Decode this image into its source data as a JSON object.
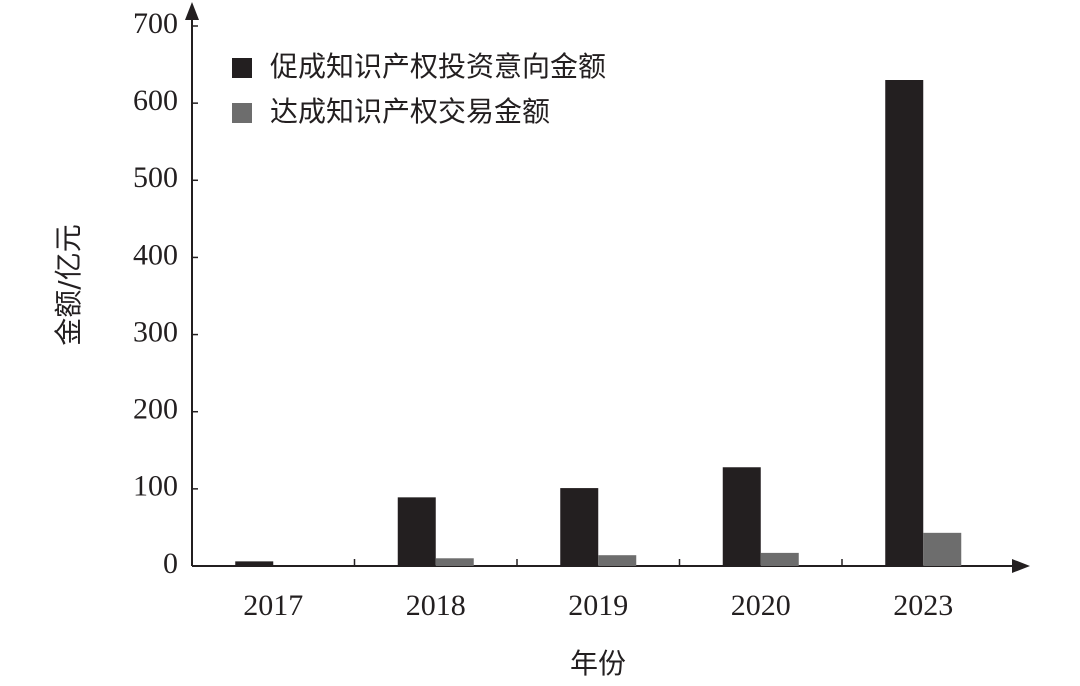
{
  "chart_data": {
    "type": "bar",
    "x_label": "年份",
    "y_label": "金额/亿元",
    "categories": [
      "2017",
      "2018",
      "2019",
      "2020",
      "2023"
    ],
    "series": [
      {
        "name": "促成知识产权投资意向金额",
        "color": "#231f20",
        "values": [
          6,
          89,
          101,
          128,
          630
        ]
      },
      {
        "name": "达成知识产权交易金额",
        "color": "#6d6d6d",
        "values": [
          0,
          10,
          14,
          17,
          43
        ]
      }
    ],
    "ylim": [
      0,
      700
    ],
    "yticks": [
      0,
      100,
      200,
      300,
      400,
      500,
      600,
      700
    ],
    "legend": "upper left",
    "grid": false
  }
}
